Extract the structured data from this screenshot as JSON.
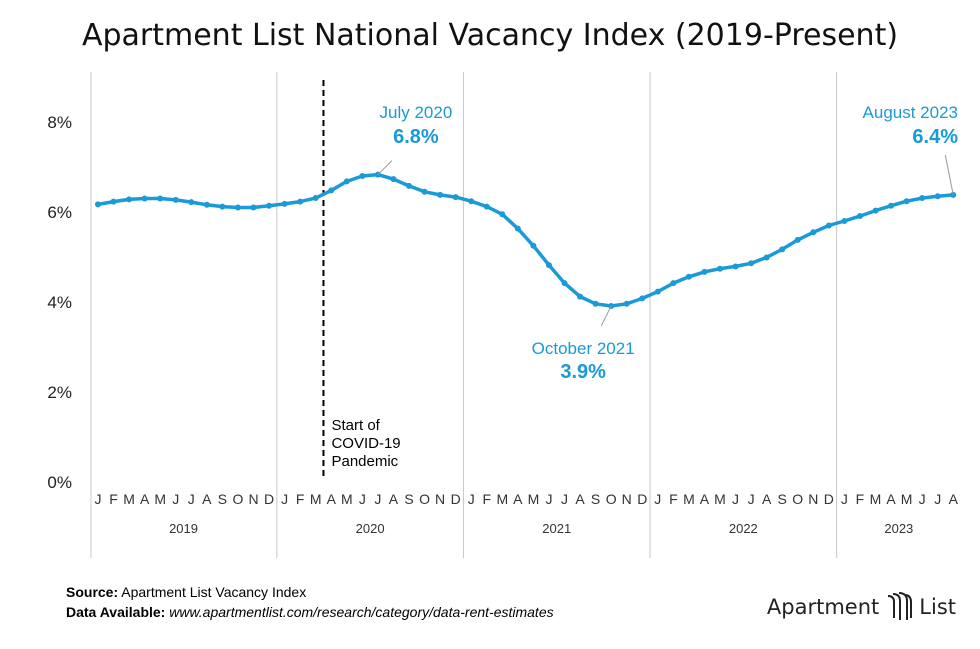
{
  "chart_data": {
    "type": "line",
    "title": "Apartment List National Vacancy Index (2019-Present)",
    "ylabel": "",
    "xlabel": "",
    "ylim": [
      0,
      9
    ],
    "y_ticks": [
      "0%",
      "2%",
      "4%",
      "6%",
      "8%"
    ],
    "y_tick_values": [
      0,
      2,
      4,
      6,
      8
    ],
    "month_letters": [
      "J",
      "F",
      "M",
      "A",
      "M",
      "J",
      "J",
      "A",
      "S",
      "O",
      "N",
      "D"
    ],
    "years": [
      "2019",
      "2020",
      "2021",
      "2022",
      "2023"
    ],
    "grid": "vertical year separators",
    "series_color": "#1a9ad6",
    "series": [
      {
        "values": [
          6.17,
          6.23,
          6.28,
          6.3,
          6.3,
          6.27,
          6.22,
          6.16,
          6.12,
          6.1,
          6.1,
          6.14,
          6.18,
          6.23,
          6.31,
          6.48,
          6.68,
          6.8,
          6.83,
          6.73,
          6.58,
          6.45,
          6.38,
          6.33,
          6.24,
          6.12,
          5.95,
          5.63,
          5.25,
          4.82,
          4.42,
          4.12,
          3.96,
          3.91,
          3.96,
          4.08,
          4.23,
          4.42,
          4.56,
          4.67,
          4.74,
          4.79,
          4.86,
          4.99,
          5.17,
          5.38,
          5.55,
          5.7,
          5.8,
          5.91,
          6.03,
          6.14,
          6.24,
          6.31,
          6.35,
          6.38
        ]
      }
    ],
    "annotations": [
      {
        "label": "July 2020",
        "value": "6.8%",
        "index": 18
      },
      {
        "label": "October 2021",
        "value": "3.9%",
        "index": 33
      },
      {
        "label": "August 2023",
        "value": "6.4%",
        "index": 55
      }
    ],
    "event": {
      "index": 14.5,
      "lines": [
        "Start of",
        "COVID-19",
        "Pandemic"
      ]
    }
  },
  "footer": {
    "source_label": "Source:",
    "source_text": "Apartment List Vacancy Index",
    "data_label": "Data Available:",
    "data_text": "www.apartmentlist.com/research/category/data-rent-estimates"
  },
  "logo": {
    "text_left": "Apartment",
    "text_right": "List",
    "icon": "building-logo-icon"
  }
}
